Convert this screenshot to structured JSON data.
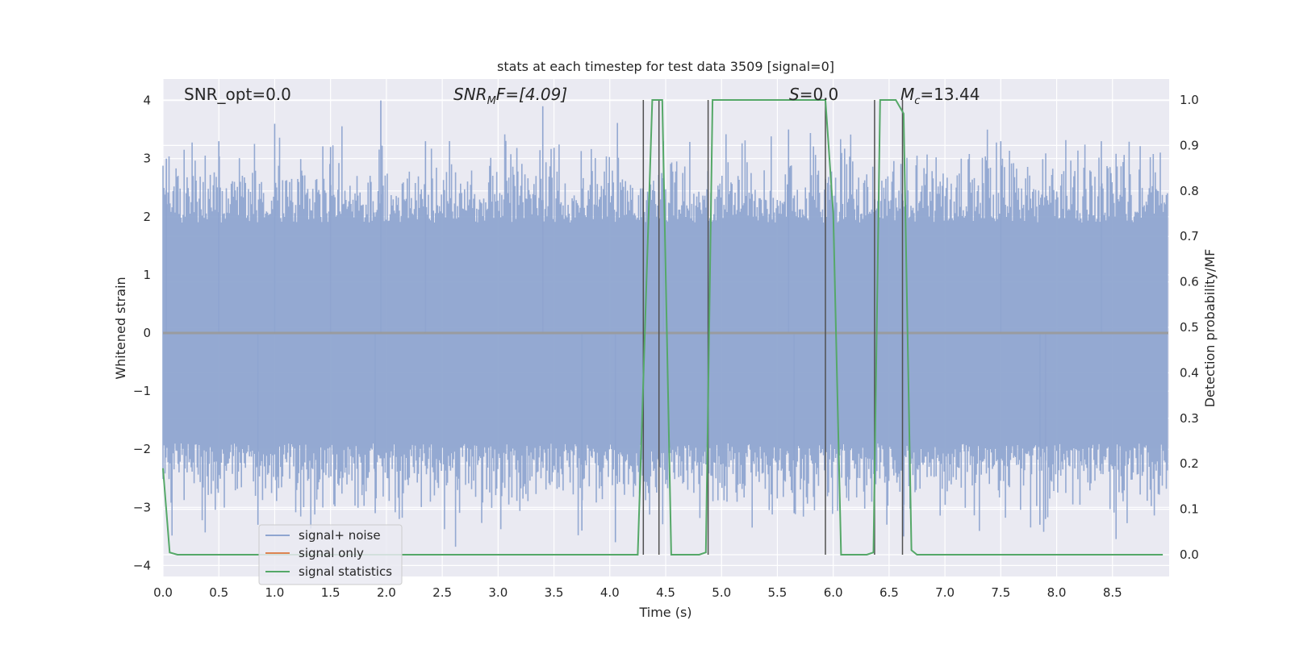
{
  "chart_data": {
    "type": "line",
    "title": "stats at each timestep for test data 3509 [signal=0]",
    "xlabel": "Time (s)",
    "ylabel_left": "Whitened strain",
    "ylabel_right": "Detection probability/MF",
    "xlim": [
      0.0,
      9.0
    ],
    "ylim_left": [
      -4.2,
      4.4
    ],
    "ylim_right": [
      -0.05,
      1.05
    ],
    "x_ticks": [
      "0.0",
      "0.5",
      "1.0",
      "1.5",
      "2.0",
      "2.5",
      "3.0",
      "3.5",
      "4.0",
      "4.5",
      "5.0",
      "5.5",
      "6.0",
      "6.5",
      "7.0",
      "7.5",
      "8.0",
      "8.5"
    ],
    "y_ticks_left": [
      "4",
      "3",
      "2",
      "1",
      "0",
      "−1",
      "−2",
      "−3",
      "−4"
    ],
    "y_ticks_right": [
      "1.0",
      "0.9",
      "0.8",
      "0.7",
      "0.6",
      "0.5",
      "0.4",
      "0.3",
      "0.2",
      "0.1",
      "0.0"
    ],
    "grid": true,
    "legend_placement": "lower-left",
    "annotations": {
      "snr_opt": "SNR_opt=0.0",
      "snr_mf_main": "SNR",
      "snr_mf_sub": "M",
      "snr_mf_tail": "F=[4.09]",
      "s_main": "S",
      "s_tail": "=0.0",
      "mc_main": "M",
      "mc_sub": "c",
      "mc_tail": "=13.44"
    },
    "series": [
      {
        "name": "signal+ noise",
        "color": "#8fa5d0",
        "axis": "left",
        "style": "dense noise centred on 0, envelope approx ±2.5 with spikes to ±4",
        "peak_points": [
          {
            "x": 0.03,
            "y": 3.0
          },
          {
            "x": 0.5,
            "y": 3.3
          },
          {
            "x": 1.0,
            "y": 3.6
          },
          {
            "x": 1.5,
            "y": 3.2
          },
          {
            "x": 1.95,
            "y": 4.0
          },
          {
            "x": 2.35,
            "y": 3.3
          },
          {
            "x": 3.4,
            "y": 3.9
          },
          {
            "x": 4.48,
            "y": 3.3
          },
          {
            "x": 5.6,
            "y": 3.5
          },
          {
            "x": 7.5,
            "y": 3.3
          },
          {
            "x": 8.4,
            "y": 3.3
          },
          {
            "x": 0.85,
            "y": -3.3
          },
          {
            "x": 1.9,
            "y": -3.1
          },
          {
            "x": 3.75,
            "y": -3.4
          },
          {
            "x": 4.05,
            "y": -3.6
          },
          {
            "x": 5.65,
            "y": -3.1
          },
          {
            "x": 7.85,
            "y": -3.3
          },
          {
            "x": 7.9,
            "y": -3.2
          },
          {
            "x": 6.63,
            "y": -3.5
          }
        ]
      },
      {
        "name": "signal only",
        "color": "#dd8452",
        "axis": "left",
        "x": [
          0.0,
          9.0
        ],
        "y": [
          0.0,
          0.0
        ]
      },
      {
        "name": "signal statistics",
        "color": "#55a868",
        "axis": "right",
        "x": [
          0.0,
          0.06,
          0.13,
          0.5,
          1.0,
          2.0,
          3.0,
          4.0,
          4.25,
          4.38,
          4.42,
          4.47,
          4.55,
          4.8,
          4.86,
          4.92,
          5.0,
          5.5,
          5.93,
          6.0,
          6.07,
          6.3,
          6.36,
          6.42,
          6.5,
          6.56,
          6.63,
          6.7,
          6.75,
          7.0,
          8.0,
          8.95
        ],
        "y": [
          0.19,
          0.005,
          0.0,
          0.0,
          0.0,
          0.0,
          0.0,
          0.0,
          0.0,
          1.0,
          1.0,
          1.0,
          0.0,
          0.0,
          0.005,
          1.0,
          1.0,
          1.0,
          1.0,
          0.75,
          0.0,
          0.0,
          0.005,
          1.0,
          1.0,
          1.0,
          0.97,
          0.01,
          0.0,
          0.0,
          0.0,
          0.0
        ]
      }
    ],
    "vertical_markers_x": [
      4.3,
      4.44,
      4.88,
      5.93,
      6.37,
      6.62
    ]
  }
}
